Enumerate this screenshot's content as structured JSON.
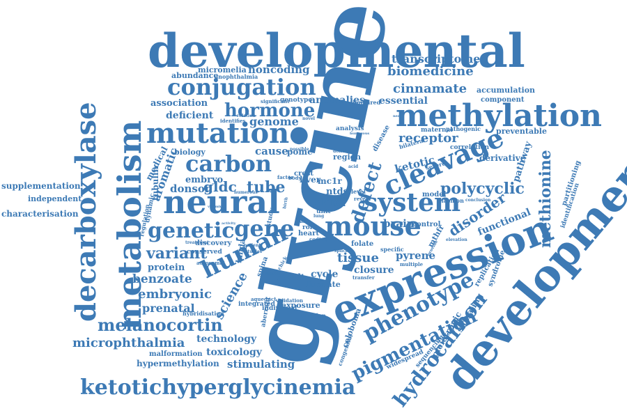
{
  "color": "#3d7ab5",
  "words": {
    "glycine": "glycine",
    "developmental": "developmental",
    "development": "development",
    "expression": "expression",
    "methylation": "methylation",
    "mutation": "mutation",
    "neural": "neural",
    "metabolism": "metabolism",
    "decarboxylase": "decarboxylase",
    "ketotichyperglycinemia": "ketotichyperglycinemia",
    "system": "system",
    "cleavage": "cleavage",
    "mouse": "mouse",
    "conjugation": "conjugation",
    "human": "human",
    "genetic": "genetic",
    "gene": "gene",
    "carbon": "carbon",
    "hormone": "hormone",
    "phenotype": "phenotype",
    "pigmentation": "pigmentation",
    "hydrocarbon": "hydrocarbon",
    "melanocortin": "melanocortin",
    "microphthalmia": "microphthalmia",
    "variant": "variant",
    "defect": "defect",
    "methionine": "methionine",
    "polycyclic": "polycyclic",
    "cinnamate": "cinnamate",
    "biomedicine": "biomedicine",
    "transcriptome": "transcriptome",
    "noncoding": "noncoding",
    "micromelia": "micromelia",
    "abundance": "abundance",
    "anophthalmia": "anophthalmia",
    "association": "association",
    "deficient": "deficient",
    "genome": "genome",
    "anomalies": "anomalies",
    "essential": "essential",
    "accumulation": "accumulation",
    "component": "component",
    "receptor": "receptor",
    "preventable": "preventable",
    "ketotic": "ketotic",
    "derivative": "derivative",
    "pathway": "pathway",
    "partitioning": "partitioning",
    "identification": "identification",
    "aromatic": "aromatic",
    "tube": "tube",
    "gldc": "gldc",
    "donson": "donson",
    "embryo": "embryo",
    "tubulin": "tubulin",
    "cause": "cause",
    "biology": "biology",
    "supplementation": "supplementation",
    "independent": "independent",
    "characterisation": "characterisation",
    "protein": "protein",
    "benzoate": "benzoate",
    "embryonic": "embryonic",
    "prenatal": "prenatal",
    "technology": "technology",
    "malformation": "malformation",
    "toxicology": "toxicology",
    "hypermethylation": "hypermethylation",
    "stimulating": "stimulating",
    "science": "science",
    "disorder": "disorder",
    "functional": "functional",
    "tissue": "tissue",
    "brain": "brain",
    "closure": "closure",
    "cycle": "cycle",
    "result": "result",
    "formate": "formate",
    "pyrene": "pyrene",
    "coloboma": "coloboma",
    "pleiotropic": "pleiotropic",
    "signaling": "signaling",
    "replication": "replication",
    "syndrome": "syndrome",
    "sequencing": "sequencing",
    "widespread": "widespread",
    "congenital": "congenital",
    "exposure": "exposure",
    "individual": "individual",
    "integrated": "integrated",
    "hybridisation": "hybridisation",
    "validation": "validation",
    "function": "function",
    "model": "model",
    "control": "control",
    "mthfr": "mthfr",
    "skin": "skin",
    "ntds": "ntds",
    "liver": "liver",
    "pomc": "pomc",
    "region": "region",
    "crest": "crest",
    "mc1r": "mc1r",
    "folate": "folate",
    "analysis": "analysis",
    "disease": "disease",
    "maternal": "maternal",
    "pathogenic": "pathogenic",
    "correlation": "correlation",
    "severe": "severe",
    "bilateral": "bilateral",
    "medical": "medical",
    "dynamic": "dynamic",
    "regulation": "regulation",
    "discovery": "discovery",
    "study": "study",
    "bifida": "bifida",
    "spina": "spina",
    "conserved": "conserved",
    "autosomal": "autosomal",
    "impaired": "impaired",
    "significant": "significant",
    "genotype": "genotype",
    "identifies": "identifies",
    "heart": "heart",
    "unit": "unit",
    "cell": "cell",
    "specific": "specific",
    "multiple": "multiple",
    "transfer": "transfer",
    "role": "role",
    "level": "level",
    "reveal": "reveal",
    "plasmon": "plasmon",
    "conclusion": "conclusion",
    "elevation": "elevation",
    "aberrant": "aberrant",
    "aqueduct": "aqueduct",
    "coding": "coding",
    "patient": "patient",
    "studies": "studies",
    "related": "related",
    "treatment": "treatment",
    "splicing": "splicing",
    "chick": "chick",
    "case": "case",
    "factor": "factor",
    "body": "body",
    "folic": "folic",
    "provide": "provide",
    "relation": "relation",
    "numerous": "numerous",
    "possible": "possible",
    "dolichol": "dolichol",
    "humerous": "humerous",
    "birth": "birth",
    "vitamin": "vitamin",
    "lung": "lung",
    "need": "need",
    "acid": "acid",
    "activity": "activity",
    "novel": "novel"
  }
}
